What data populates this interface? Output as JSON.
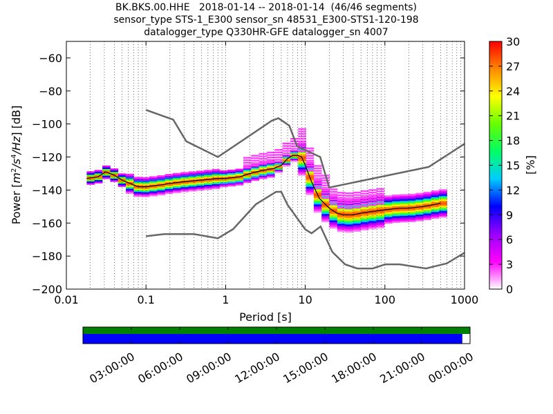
{
  "title": {
    "line1": "BK.BKS.00.HHE   2018-01-14 -- 2018-01-14  (46/46 segments)",
    "line2": "sensor_type STS-1_E300 sensor_sn 48531_E300-STS1-120-198",
    "line3": "datalogger_type Q330HR-GFE datalogger_sn 4007"
  },
  "chart_data": {
    "type": "heatmap",
    "xlabel": "Period [s]",
    "ylabel": "Power [m²/s⁴/Hz] [dB]",
    "ylabel_parts": {
      "prefix": "Power [",
      "m": "m",
      "exp2": "2",
      "s": "/s",
      "exp4": "4",
      "hz": "/Hz",
      "suffix": "] [dB]"
    },
    "xscale": "log",
    "xlim": [
      0.01,
      1000
    ],
    "ylim": [
      -200,
      -50
    ],
    "xticks": [
      0.01,
      0.1,
      1,
      10,
      100,
      1000
    ],
    "xtick_labels": [
      "0.01",
      "0.1",
      "1",
      "10",
      "100",
      "1000"
    ],
    "yticks": [
      -200,
      -180,
      -160,
      -140,
      -120,
      -100,
      -80,
      -60
    ],
    "ytick_labels": [
      "−200",
      "−180",
      "−160",
      "−140",
      "−120",
      "−100",
      "−80",
      "−60"
    ],
    "grid": "dotted vertical at decade subdivisions",
    "colorbar": {
      "label": "[%]",
      "range": [
        0,
        30
      ],
      "ticks": [
        0,
        3,
        6,
        9,
        12,
        15,
        18,
        21,
        24,
        27,
        30
      ],
      "colormap": [
        "#ffffff",
        "#ff00ff",
        "#9900ff",
        "#0000ff",
        "#00ccff",
        "#00ff66",
        "#66ff00",
        "#ffff00",
        "#ff8800",
        "#ff0000"
      ]
    },
    "nhnm": {
      "period": [
        0.1,
        0.22,
        0.32,
        0.8,
        3.8,
        4.6,
        6.3,
        7.9,
        15.4,
        20,
        354.8,
        1000
      ],
      "power": [
        -91.5,
        -97.4,
        -110.5,
        -120,
        -98,
        -96.5,
        -101,
        -113.5,
        -120,
        -138.5,
        -126,
        -112
      ]
    },
    "nlnm": {
      "period": [
        0.1,
        0.17,
        0.4,
        0.8,
        1.24,
        2.4,
        4.3,
        5,
        6,
        10,
        12,
        15.6,
        21.9,
        31.6,
        45,
        70,
        101,
        154,
        328,
        600,
        1000
      ],
      "power": [
        -168,
        -166.7,
        -166.7,
        -169.2,
        -163.7,
        -148.6,
        -141.1,
        -141.1,
        -149,
        -163.8,
        -166.2,
        -162.1,
        -177.5,
        -185,
        -187.5,
        -187.5,
        -185,
        -185,
        -187.5,
        -184.4,
        -178
      ]
    },
    "median": {
      "period": [
        0.018,
        0.025,
        0.031,
        0.04,
        0.05,
        0.063,
        0.08,
        0.1,
        0.15,
        0.2,
        0.3,
        0.5,
        0.8,
        1,
        1.5,
        2,
        3,
        4,
        5,
        6,
        7,
        8,
        9,
        10,
        12,
        15,
        20,
        25,
        30,
        40,
        50,
        70,
        100,
        150,
        200,
        300,
        400,
        500
      ],
      "power": [
        -133,
        -132,
        -129,
        -131,
        -134,
        -136,
        -138,
        -138,
        -137,
        -136,
        -135,
        -134,
        -133,
        -133,
        -132,
        -130,
        -128,
        -127,
        -125,
        -121,
        -119,
        -119,
        -120,
        -125,
        -135,
        -145,
        -151,
        -154,
        -155,
        -155,
        -154,
        -153,
        -152,
        -151,
        -151,
        -150,
        -149,
        -148
      ]
    },
    "x_axis_extra": {
      "data_availability_bar": {
        "green_fill": 1.0,
        "blue_fill": 0.98
      },
      "time_ticks": [
        "03:00:00",
        "06:00:00",
        "09:00:00",
        "12:00:00",
        "15:00:00",
        "18:00:00",
        "21:00:00",
        "00:00:00"
      ]
    }
  }
}
